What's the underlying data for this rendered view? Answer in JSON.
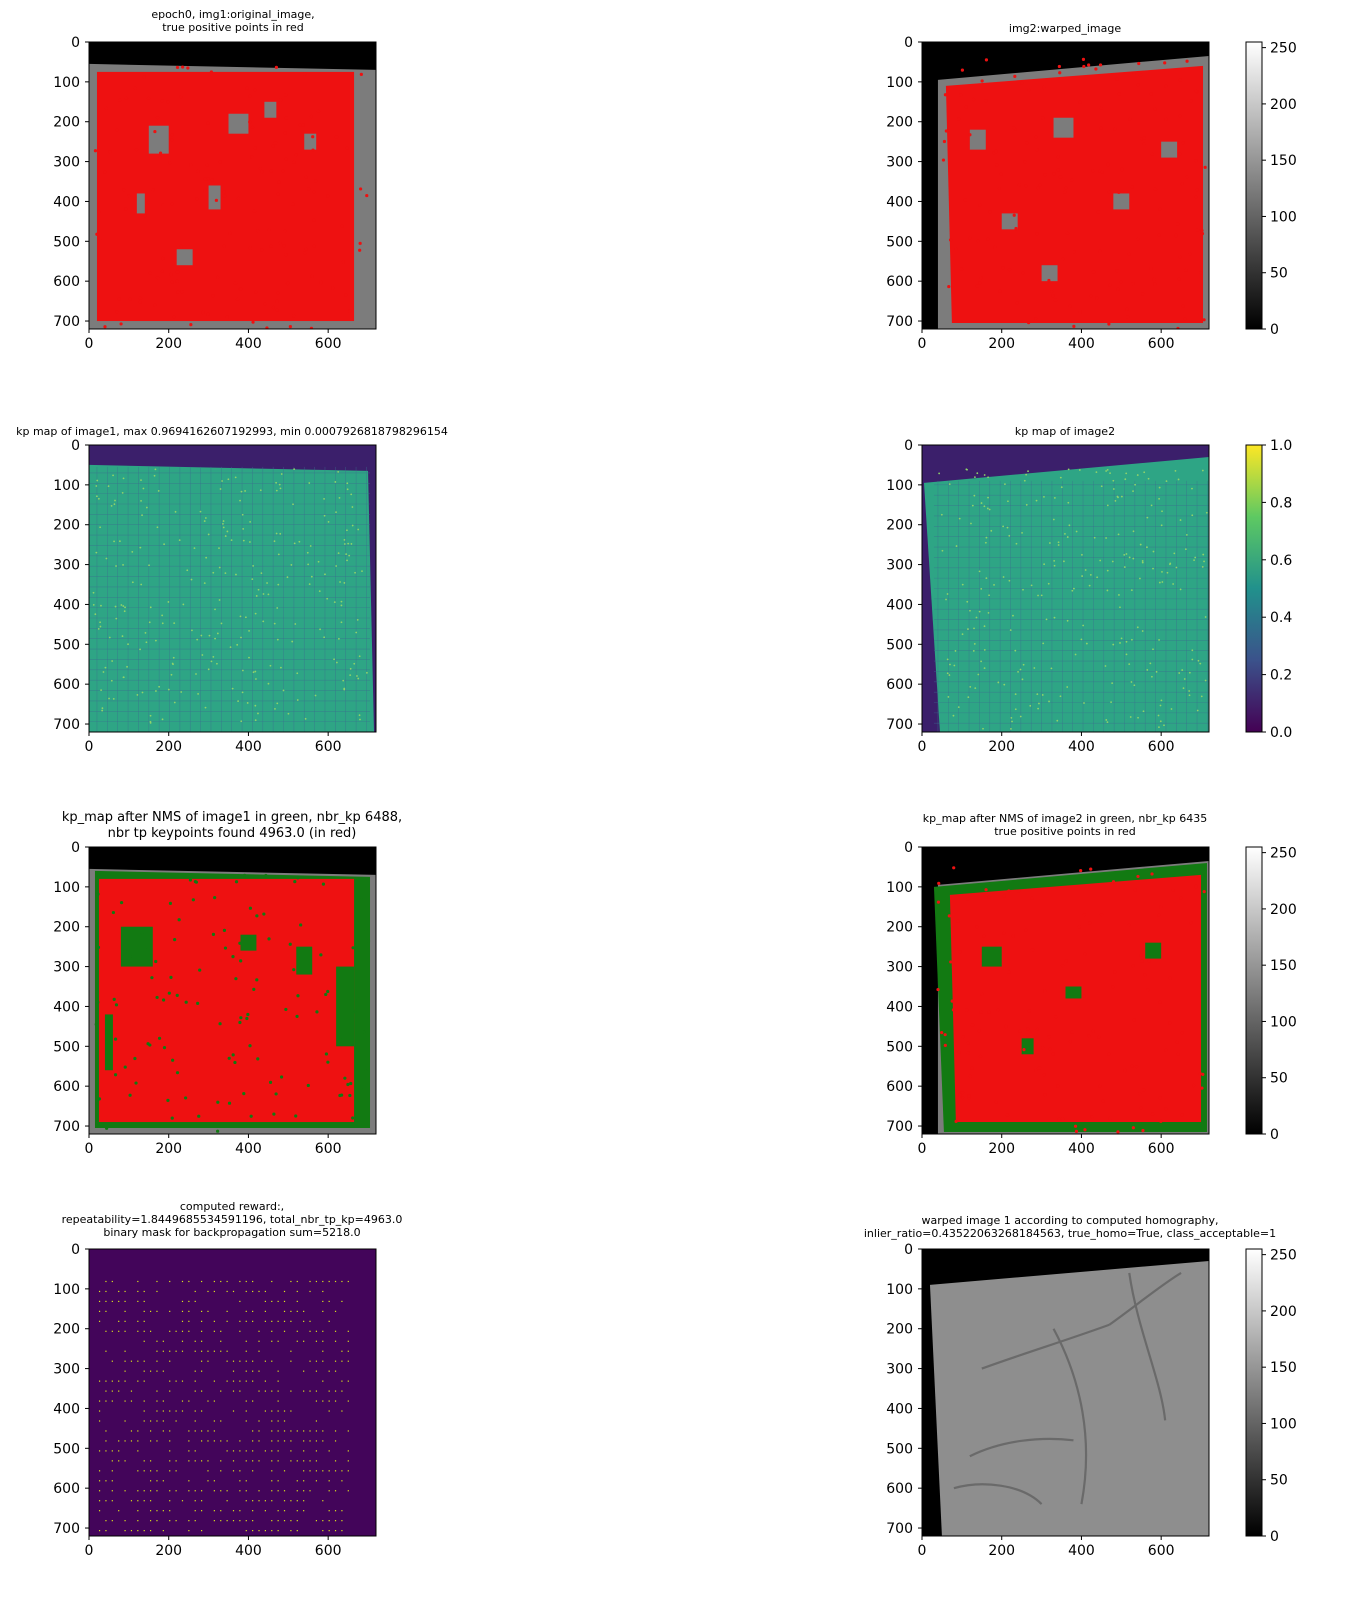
{
  "chart_data": [
    {
      "id": "p1",
      "type": "heatmap",
      "title": "epoch0, img1:original_image,\ntrue positive points in red",
      "xticks": [
        "0",
        "200",
        "400",
        "600"
      ],
      "yticks": [
        "0",
        "100",
        "200",
        "300",
        "400",
        "500",
        "600",
        "700"
      ],
      "xlim": [
        0,
        720
      ],
      "ylim": [
        720,
        0
      ],
      "cmap": "gray",
      "overlay": "red",
      "overlay_label": "true positive points"
    },
    {
      "id": "p2",
      "type": "heatmap",
      "title": "img2:warped_image",
      "xticks": [
        "0",
        "200",
        "400",
        "600"
      ],
      "yticks": [
        "0",
        "100",
        "200",
        "300",
        "400",
        "500",
        "600",
        "700"
      ],
      "xlim": [
        0,
        720
      ],
      "ylim": [
        720,
        0
      ],
      "cmap": "gray",
      "overlay": "red",
      "colorbar": {
        "ticks": [
          "0",
          "50",
          "100",
          "150",
          "200",
          "250"
        ],
        "range": [
          0,
          255
        ]
      }
    },
    {
      "id": "p3",
      "type": "heatmap",
      "title": "kp map of image1, max 0.9694162607192993, min 0.0007926818798296154",
      "xticks": [
        "0",
        "200",
        "400",
        "600"
      ],
      "yticks": [
        "0",
        "100",
        "200",
        "300",
        "400",
        "500",
        "600",
        "700"
      ],
      "xlim": [
        0,
        720
      ],
      "ylim": [
        720,
        0
      ],
      "cmap": "viridis",
      "max": 0.9694162607192993,
      "min": 0.0007926818798296154
    },
    {
      "id": "p4",
      "type": "heatmap",
      "title": "kp map of image2",
      "xticks": [
        "0",
        "200",
        "400",
        "600"
      ],
      "yticks": [
        "0",
        "100",
        "200",
        "300",
        "400",
        "500",
        "600",
        "700"
      ],
      "xlim": [
        0,
        720
      ],
      "ylim": [
        720,
        0
      ],
      "cmap": "viridis",
      "colorbar": {
        "ticks": [
          "0.0",
          "0.2",
          "0.4",
          "0.6",
          "0.8",
          "1.0"
        ],
        "range": [
          0,
          1
        ]
      }
    },
    {
      "id": "p5",
      "type": "heatmap",
      "title": "kp_map after NMS of image1 in green, nbr_kp 6488,\nnbr tp keypoints found 4963.0 (in red)",
      "xticks": [
        "0",
        "200",
        "400",
        "600"
      ],
      "yticks": [
        "0",
        "100",
        "200",
        "300",
        "400",
        "500",
        "600",
        "700"
      ],
      "xlim": [
        0,
        720
      ],
      "ylim": [
        720,
        0
      ],
      "cmap": "gray",
      "nbr_kp": 6488,
      "nbr_tp": 4963.0
    },
    {
      "id": "p6",
      "type": "heatmap",
      "title": "kp_map after NMS of image2 in green, nbr_kp 6435\ntrue positive points in red",
      "xticks": [
        "0",
        "200",
        "400",
        "600"
      ],
      "yticks": [
        "0",
        "100",
        "200",
        "300",
        "400",
        "500",
        "600",
        "700"
      ],
      "xlim": [
        0,
        720
      ],
      "ylim": [
        720,
        0
      ],
      "cmap": "gray",
      "nbr_kp": 6435,
      "colorbar": {
        "ticks": [
          "0",
          "50",
          "100",
          "150",
          "200",
          "250"
        ],
        "range": [
          0,
          255
        ]
      }
    },
    {
      "id": "p7",
      "type": "heatmap",
      "title": "computed reward:,\nrepeatability=1.8449685534591196, total_nbr_tp_kp=4963.0\nbinary mask for backpropagation sum=5218.0",
      "xticks": [
        "0",
        "200",
        "400",
        "600"
      ],
      "yticks": [
        "0",
        "100",
        "200",
        "300",
        "400",
        "500",
        "600",
        "700"
      ],
      "xlim": [
        0,
        720
      ],
      "ylim": [
        720,
        0
      ],
      "cmap": "viridis",
      "repeatability": 1.8449685534591196,
      "total_nbr_tp_kp": 4963.0,
      "mask_sum": 5218.0
    },
    {
      "id": "p8",
      "type": "heatmap",
      "title": "warped image 1 according to computed homography,\ninlier_ratio=0.43522063268184563, true_homo=True, class_acceptable=1",
      "xticks": [
        "0",
        "200",
        "400",
        "600"
      ],
      "yticks": [
        "0",
        "100",
        "200",
        "300",
        "400",
        "500",
        "600",
        "700"
      ],
      "xlim": [
        0,
        720
      ],
      "ylim": [
        720,
        0
      ],
      "cmap": "gray",
      "inlier_ratio": 0.43522063268184563,
      "colorbar": {
        "ticks": [
          "0",
          "50",
          "100",
          "150",
          "200",
          "250"
        ],
        "range": [
          0,
          255
        ]
      }
    }
  ],
  "colors": {
    "red": "#ee1111",
    "green": "#127a12",
    "gray_bg": "#7c7c7c",
    "viridis_bg": "#3b1f6b",
    "viridis_field": "#2ea585",
    "viridis_mask": "#43055a"
  }
}
